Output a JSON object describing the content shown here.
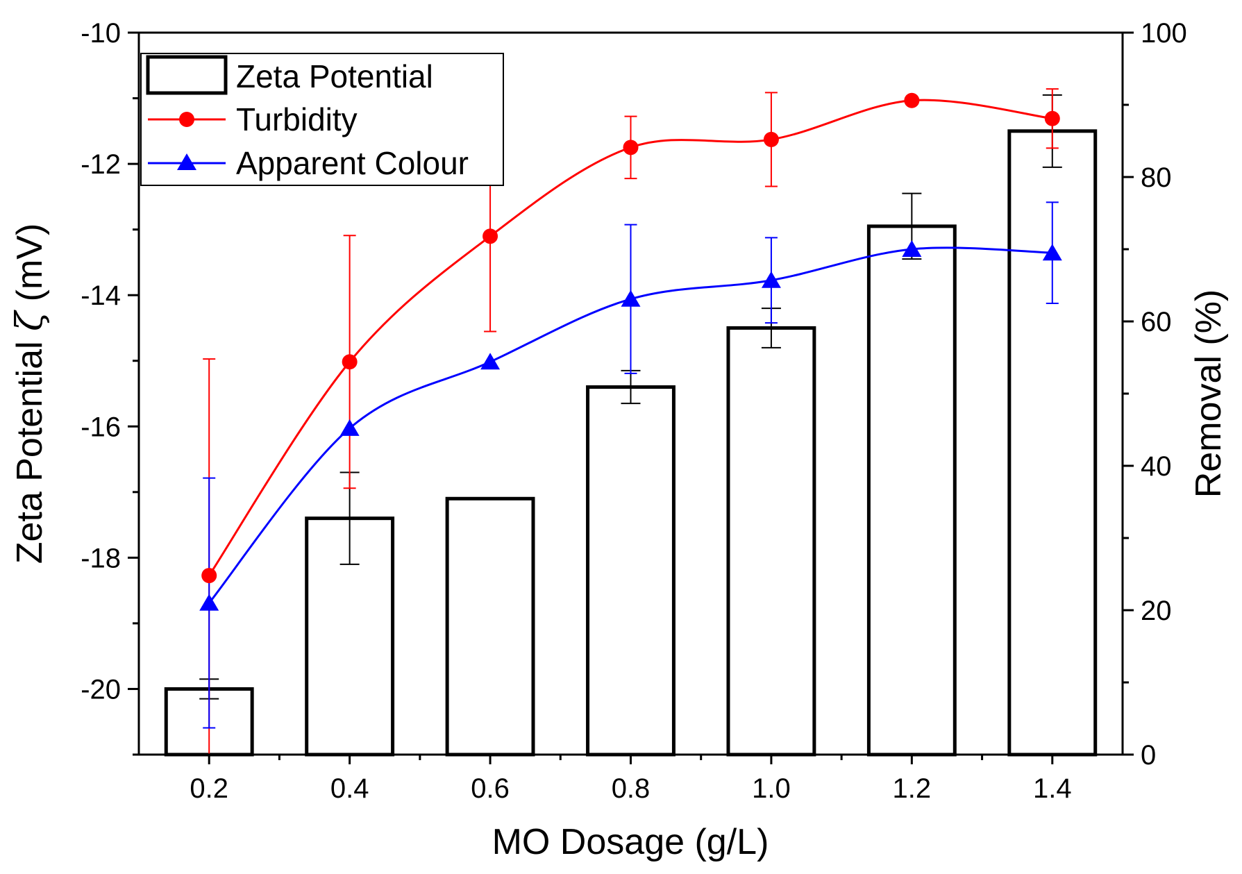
{
  "chart_data": {
    "type": "bar",
    "xlabel": "MO Dosage (g/L)",
    "ylabel_left": {
      "prefix": "Zeta Potential ",
      "symbol": "ζ",
      "suffix": " (mV)"
    },
    "ylabel_right": "Removal (%)",
    "categories": [
      "0.2",
      "0.4",
      "0.6",
      "0.8",
      "1.0",
      "1.2",
      "1.4"
    ],
    "x_values": [
      0.2,
      0.4,
      0.6,
      0.8,
      1.0,
      1.2,
      1.4
    ],
    "xlim": [
      0.1,
      1.5
    ],
    "ylim_left": [
      -21,
      -10
    ],
    "ylim_right": [
      0,
      100
    ],
    "yticks_left": [
      -10,
      -12,
      -14,
      -16,
      -18,
      -20
    ],
    "yticks_right": [
      100,
      80,
      60,
      40,
      20,
      0
    ],
    "yticks_left_labels": [
      "-10",
      "-12",
      "-14",
      "-16",
      "-18",
      "-20"
    ],
    "yticks_right_labels": [
      "100",
      "80",
      "60",
      "40",
      "20",
      "0"
    ],
    "legend_position": "top-left",
    "series": [
      {
        "name": "Zeta Potential",
        "kind": "bar",
        "axis": "left",
        "color": "#000000",
        "values": [
          -20.0,
          -17.4,
          -17.1,
          -15.4,
          -14.5,
          -12.95,
          -11.5
        ],
        "errors": [
          0.15,
          0.7,
          0.0,
          0.25,
          0.3,
          0.5,
          0.55
        ]
      },
      {
        "name": "Turbidity",
        "kind": "line",
        "marker": "circle",
        "axis": "right",
        "color": "#ff0000",
        "values": [
          24.8,
          54.4,
          71.8,
          84.1,
          85.2,
          90.6,
          88.1
        ],
        "errors": [
          30,
          17.5,
          13.2,
          4.3,
          6.5,
          0,
          4.1
        ]
      },
      {
        "name": "Apparent Colour",
        "kind": "line",
        "marker": "triangle",
        "axis": "right",
        "color": "#0000ff",
        "values": [
          21.0,
          45.2,
          54.4,
          63.1,
          65.7,
          70.0,
          69.5
        ],
        "errors": [
          17.3,
          0,
          0,
          10.3,
          5.9,
          0,
          7.0
        ]
      }
    ]
  }
}
